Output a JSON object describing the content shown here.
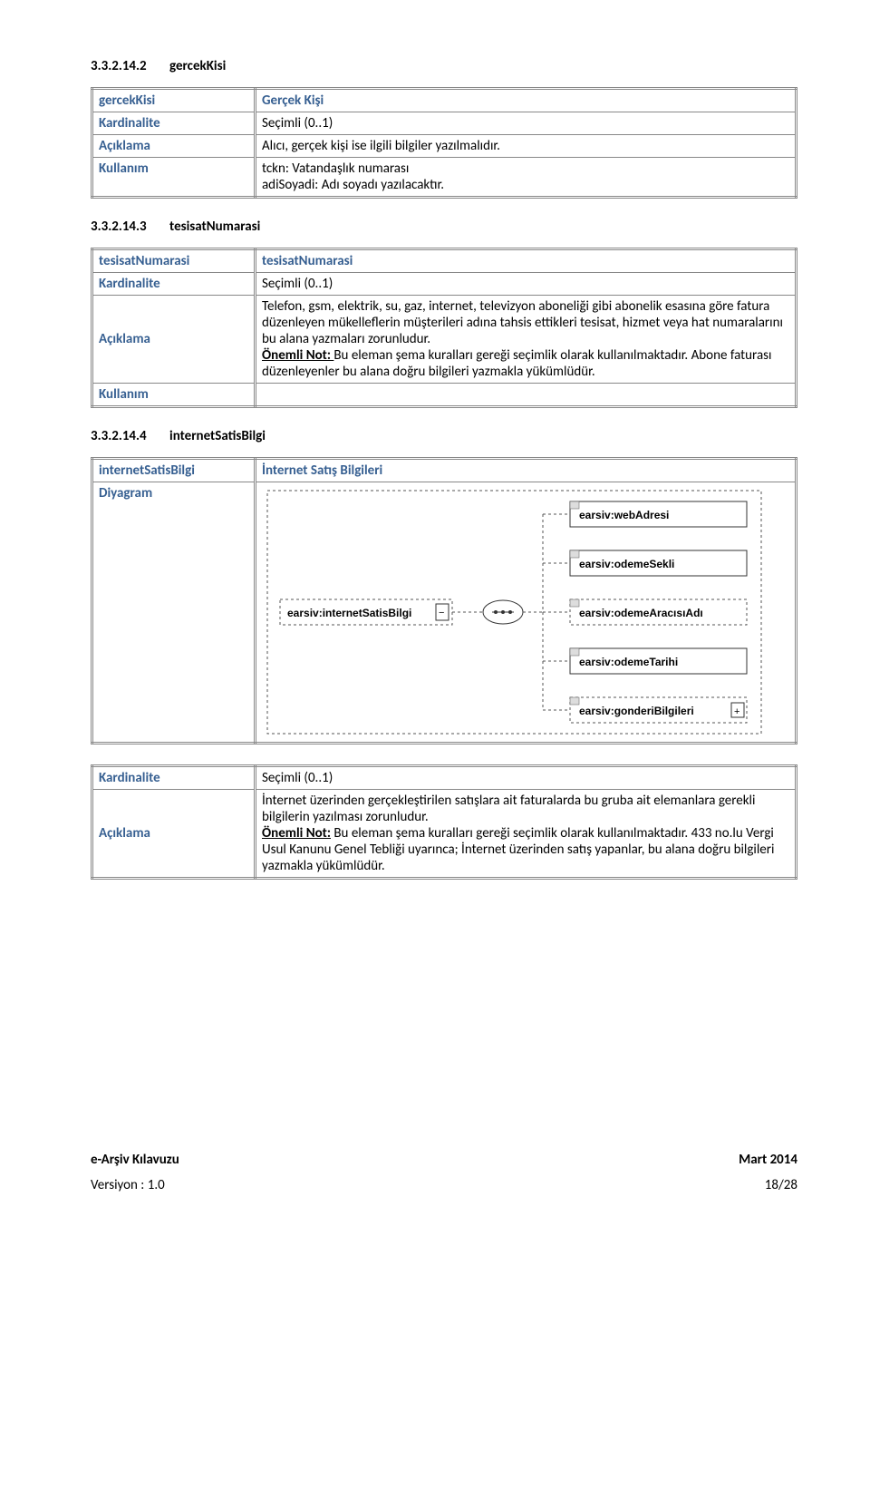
{
  "section1": {
    "number": "3.3.2.14.2",
    "title": "gercekKisi"
  },
  "table1": {
    "header_left": "gercekKisi",
    "header_right": "Gerçek Kişi",
    "kardinalite_label": "Kardinalite",
    "kardinalite_value": "Seçimli (0..1)",
    "aciklama_label": "Açıklama",
    "aciklama_value": "Alıcı, gerçek kişi ise ilgili bilgiler yazılmalıdır.",
    "kullanim_label": "Kullanım",
    "kullanim_value": "tckn: Vatandaşlık numarası\nadiSoyadi: Adı soyadı yazılacaktır."
  },
  "section2": {
    "number": "3.3.2.14.3",
    "title": "tesisatNumarasi"
  },
  "table2": {
    "header_left": "tesisatNumarasi",
    "header_right": "tesisatNumarasi",
    "kardinalite_label": "Kardinalite",
    "kardinalite_value": "Seçimli (0..1)",
    "aciklama_label": "Açıklama",
    "aciklama_body1": "Telefon, gsm, elektrik, su, gaz, internet, televizyon aboneliği gibi abonelik esasına göre fatura düzenleyen mükelleflerin müşterileri adına tahsis ettikleri tesisat, hizmet veya hat numaralarını bu alana yazmaları zorunludur.",
    "aciklama_important": "Önemli Not: ",
    "aciklama_body2": "Bu eleman şema kuralları gereği seçimlik olarak kullanılmaktadır. Abone faturası düzenleyenler bu alana doğru bilgileri yazmakla yükümlüdür.",
    "kullanim_label": "Kullanım"
  },
  "section3": {
    "number": "3.3.2.14.4",
    "title": "internetSatisBilgi"
  },
  "table3": {
    "header_left": "internetSatisBilgi",
    "header_right": "İnternet Satış Bilgileri",
    "diyagram_label": "Diyagram",
    "kardinalite_label": "Kardinalite",
    "kardinalite_value": "Seçimli (0..1)",
    "aciklama_label": "Açıklama",
    "aciklama_body1": "İnternet üzerinden gerçekleştirilen satışlara ait faturalarda bu gruba ait elemanlara gerekli bilgilerin yazılması zorunludur.",
    "aciklama_important": "Önemli Not:",
    "aciklama_body2": " Bu eleman şema kuralları gereği seçimlik olarak kullanılmaktadır. 433 no.lu Vergi Usul Kanunu Genel Tebliği uyarınca; İnternet üzerinden satış yapanlar, bu alana doğru bilgileri yazmakla yükümlüdür."
  },
  "diagram": {
    "left_label": "earsiv:internetSatisBilgi",
    "nodes": [
      "earsiv:webAdresi",
      "earsiv:odemeSekli",
      "earsiv:odemeAracısıAdı",
      "earsiv:odemeTarihi",
      "earsiv:gonderiBilgileri"
    ]
  },
  "footer": {
    "left_bold": "e-Arşiv Kılavuzu",
    "right_bold": "Mart 2014",
    "left": "Versiyon : 1.0",
    "right": "18/28"
  }
}
